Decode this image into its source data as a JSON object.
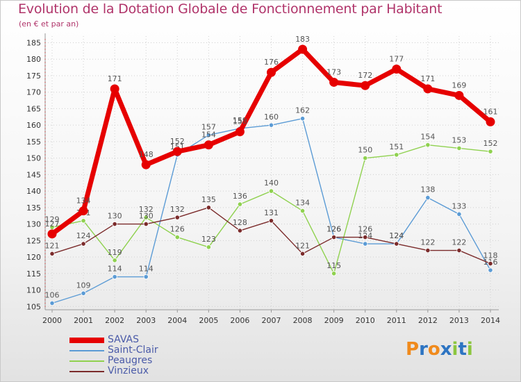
{
  "title": "Evolution de la Dotation Globale de Fonctionnement par Habitant",
  "subtitle": "(en € et par an)",
  "logo": {
    "letters": [
      "P",
      "r",
      "o",
      "x",
      "i",
      "t",
      "i"
    ],
    "colors": [
      "#f08a1c",
      "#2d74c2",
      "#f08a1c",
      "#2d74c2",
      "#8cc63f",
      "#2d74c2",
      "#8cc63f"
    ]
  },
  "chart_data": {
    "type": "line",
    "title": "Evolution de la Dotation Globale de Fonctionnement par Habitant",
    "subtitle": "(en € et par an)",
    "xlabel": "",
    "ylabel": "",
    "x": [
      "2000",
      "2001",
      "2002",
      "2003",
      "2004",
      "2005",
      "2006",
      "2007",
      "2008",
      "2009",
      "2010",
      "2011",
      "2012",
      "2013",
      "2014"
    ],
    "ylim": [
      104,
      187
    ],
    "yticks": [
      "105",
      "110",
      "115",
      "120",
      "125",
      "130",
      "135",
      "140",
      "145",
      "150",
      "155",
      "160",
      "165",
      "170",
      "175",
      "180",
      "185"
    ],
    "grid": true,
    "legend_position": "bottom-left",
    "series": [
      {
        "name": "Saint-Clair",
        "color": "#5b9bd5",
        "values": [
          106,
          109,
          114,
          114,
          151,
          157,
          159,
          160,
          162,
          126,
          124,
          124,
          138,
          133,
          116
        ],
        "labels": [
          "106",
          "109",
          "114",
          "114",
          "151",
          "157",
          "159",
          "160",
          "162",
          "126",
          "124",
          "124",
          "138",
          "133",
          "116"
        ]
      },
      {
        "name": "Peaugres",
        "color": "#8fd14f",
        "values": [
          129,
          131,
          119,
          132,
          126,
          123,
          136,
          140,
          134,
          115,
          150,
          151,
          154,
          153,
          152
        ],
        "labels": [
          "129",
          "131",
          "119",
          "132",
          "126",
          "123",
          "136",
          "140",
          "134",
          "115",
          "150",
          "151",
          "154",
          "153",
          "152"
        ]
      },
      {
        "name": "Vinzieux",
        "color": "#7b2b2b",
        "values": [
          121,
          124,
          130,
          130,
          132,
          135,
          128,
          131,
          121,
          126,
          126,
          124,
          122,
          122,
          118
        ],
        "labels": [
          "121",
          "124",
          "130",
          "130",
          "132",
          "135",
          "128",
          "131",
          "121",
          "126",
          "126",
          "124",
          "122",
          "122",
          "118"
        ]
      },
      {
        "name": "SAVAS",
        "color": "#e60000",
        "values": [
          127,
          134,
          171,
          148,
          152,
          154,
          158,
          176,
          183,
          173,
          172,
          177,
          171,
          169,
          161
        ],
        "labels": [
          "127",
          "134",
          "171",
          "148",
          "152",
          "154",
          "158",
          "176",
          "183",
          "173",
          "172",
          "177",
          "171",
          "169",
          "161"
        ]
      }
    ],
    "legend": [
      "SAVAS",
      "Saint-Clair",
      "Peaugres",
      "Vinzieux"
    ]
  }
}
